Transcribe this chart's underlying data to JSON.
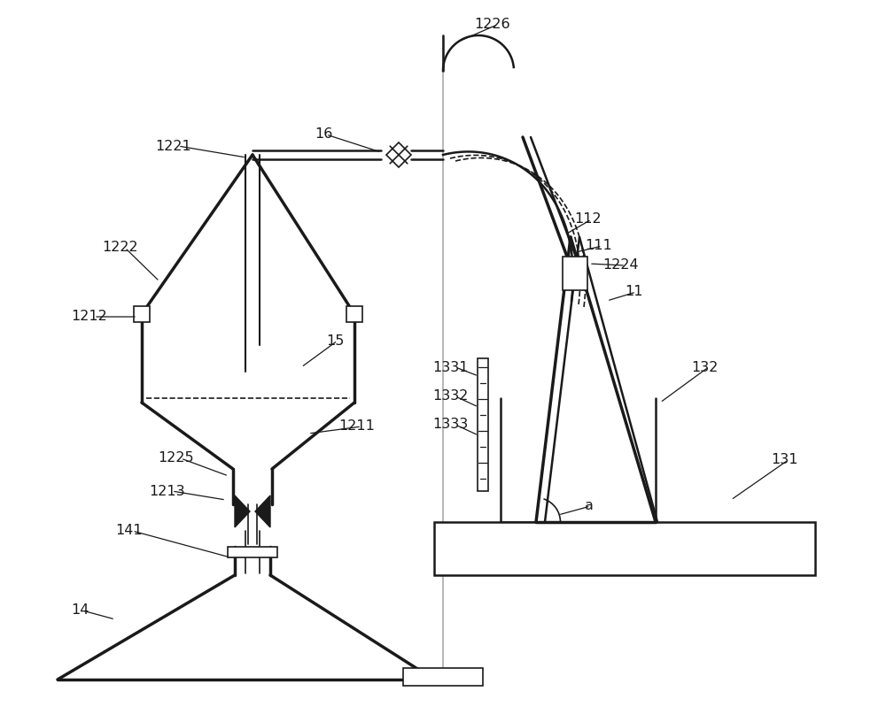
{
  "bg_color": "#ffffff",
  "line_color": "#1a1a1a",
  "label_color": "#1a1a1a",
  "figsize": [
    10.0,
    8.16
  ],
  "dpi": 100,
  "lw_thick": 2.5,
  "lw_med": 1.8,
  "lw_thin": 1.2,
  "label_fontsize": 11.5
}
